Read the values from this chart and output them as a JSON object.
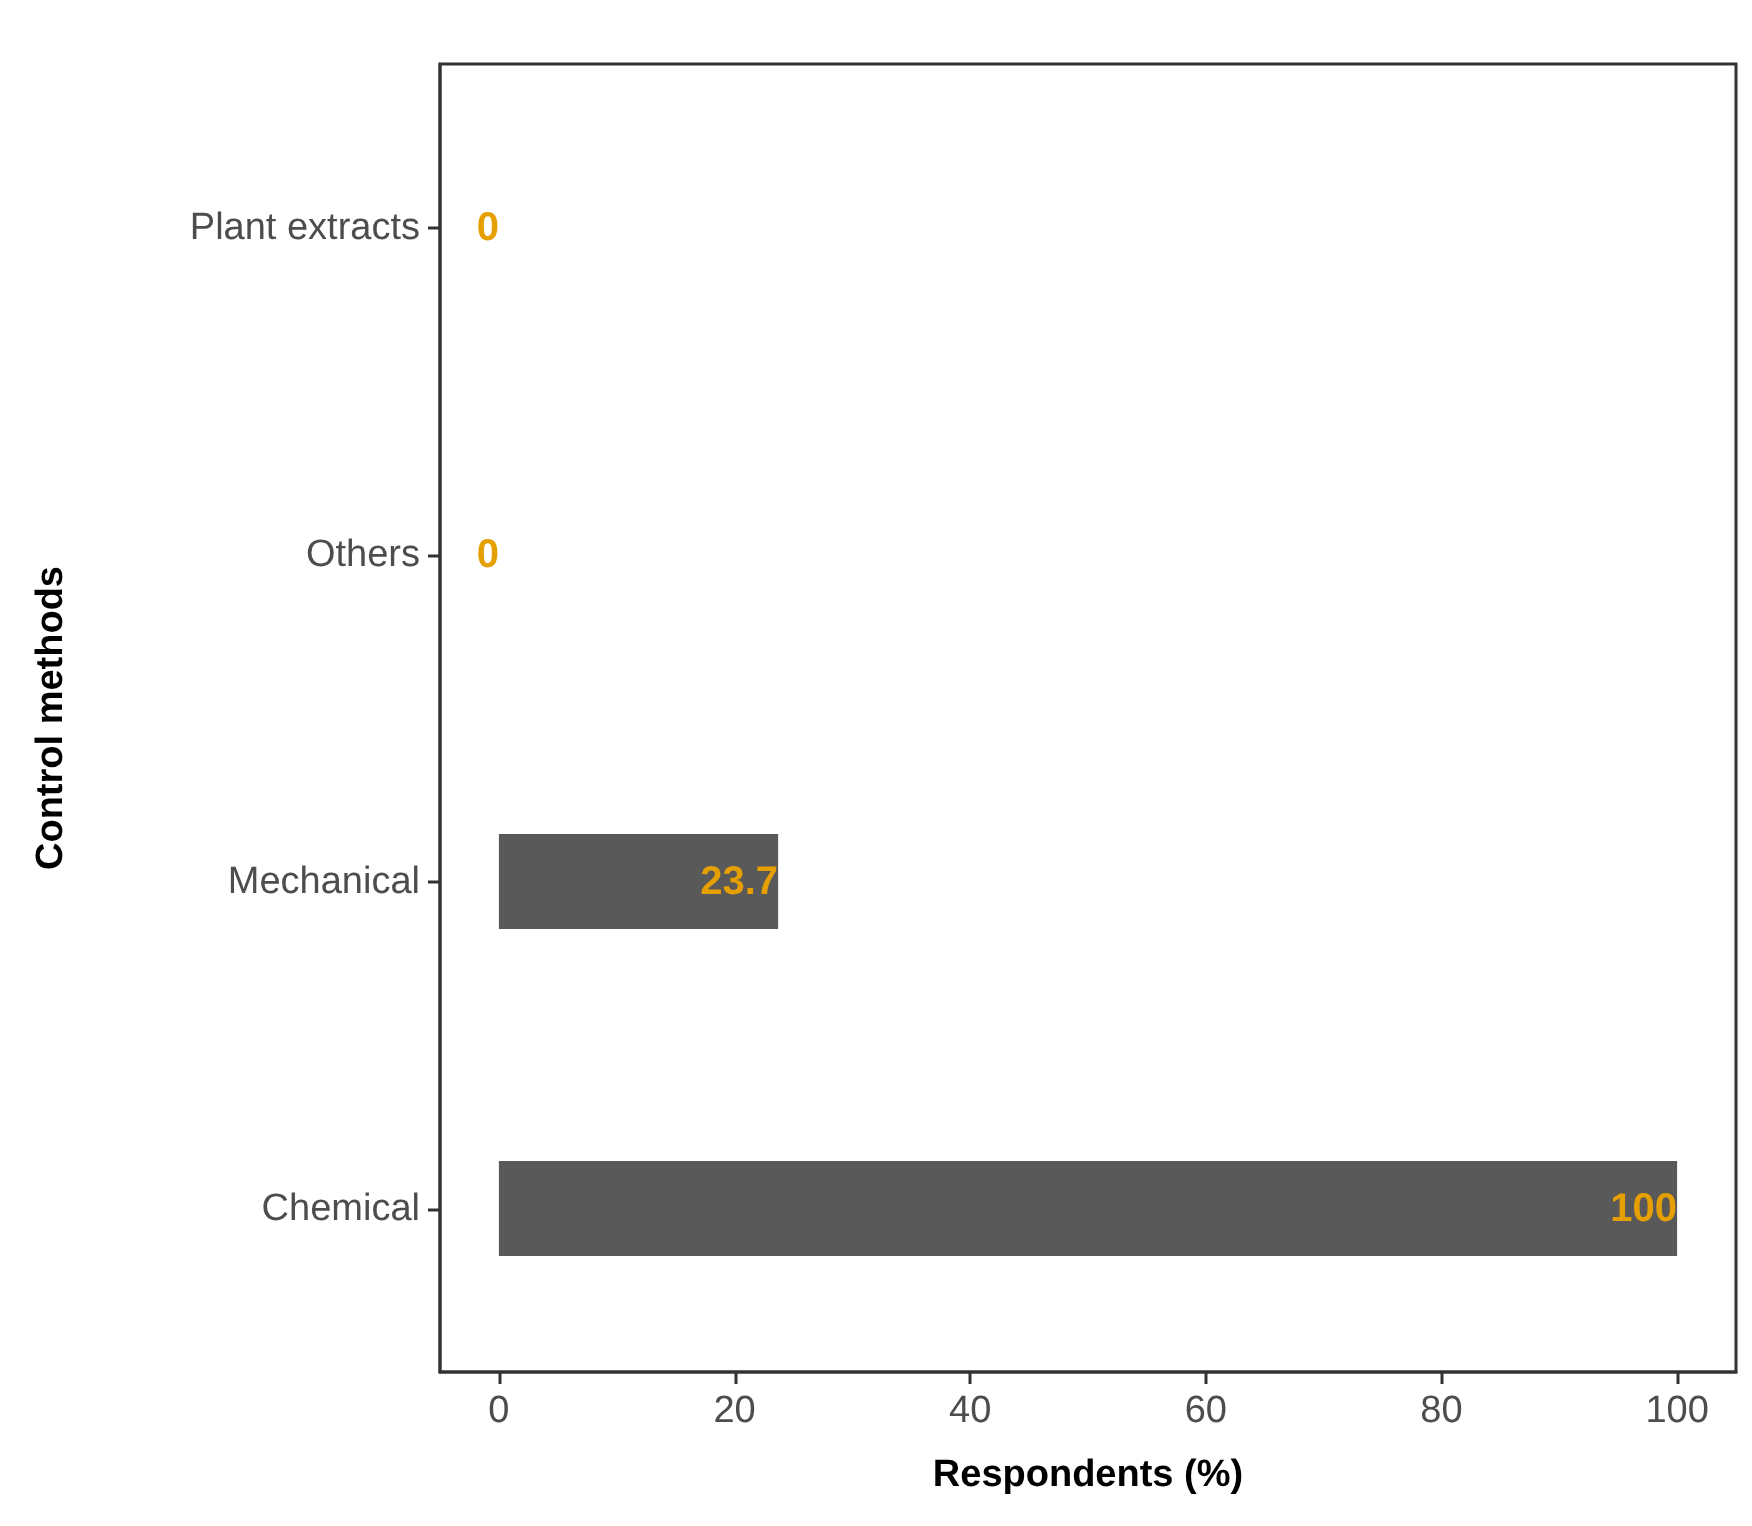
{
  "chart_data": {
    "type": "bar",
    "orientation": "horizontal",
    "xlabel": "Respondents (%)",
    "ylabel": "Control methods",
    "categories": [
      "Plant extracts",
      "Others",
      "Mechanical",
      "Chemical"
    ],
    "values": [
      0,
      0,
      23.7,
      100
    ],
    "color": "#595959",
    "data_labels": true,
    "xlim": [
      -5,
      105
    ],
    "xticks": [
      0,
      20,
      40,
      60,
      80,
      100
    ],
    "grid": false
  }
}
